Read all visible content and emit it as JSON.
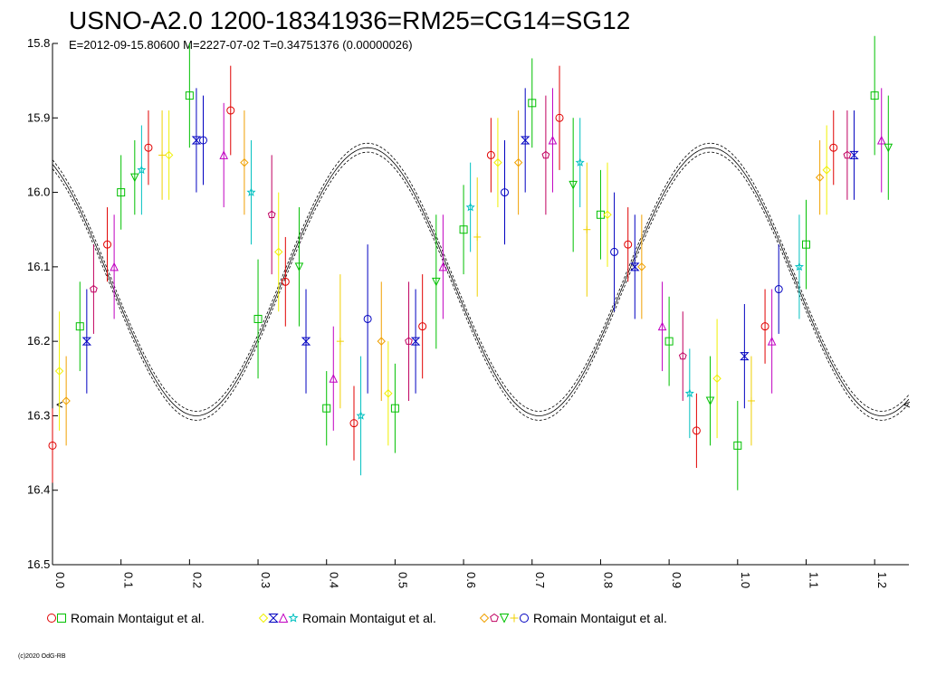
{
  "chart_data": {
    "type": "scatter",
    "title": "USNO-A2.0 1200-18341936=RM25=CG14=SG12",
    "subtitle": "E=2012-09-15.80600    M=2227-07-02    T=0.34751376 (0.00000026)",
    "xlabel": "",
    "ylabel": "",
    "xlim": [
      0.0,
      1.25
    ],
    "ylim": [
      15.8,
      16.5
    ],
    "y_inverted": true,
    "x_ticks": [
      "0.0",
      "0.1",
      "0.2",
      "0.3",
      "0.4",
      "0.5",
      "0.6",
      "0.7",
      "0.8",
      "0.9",
      "1.0",
      "1.1",
      "1.2"
    ],
    "y_ticks": [
      "15.8",
      "15.9",
      "16.0",
      "16.1",
      "16.2",
      "16.3",
      "16.4",
      "16.5"
    ],
    "grid": false,
    "legend_position": "bottom",
    "model_curve": {
      "mean": 16.12,
      "amplitude": 0.18,
      "min_phase": 0.21,
      "period_phase": 0.5
    },
    "series": [
      {
        "name": "Romain Montaigut et al.",
        "colors": [
          "#e00000",
          "#00c000"
        ],
        "markers": [
          "circle",
          "square"
        ],
        "x": [
          0.0,
          0.04,
          0.08,
          0.1,
          0.14,
          0.2,
          0.26,
          0.3,
          0.34,
          0.4,
          0.44,
          0.5,
          0.54,
          0.6,
          0.64,
          0.7,
          0.74,
          0.8,
          0.84,
          0.9,
          0.94,
          1.0,
          1.04,
          1.1,
          1.14,
          1.2
        ],
        "y": [
          16.34,
          16.18,
          16.07,
          16.0,
          15.94,
          15.87,
          15.89,
          16.17,
          16.12,
          16.29,
          16.31,
          16.29,
          16.18,
          16.05,
          15.95,
          15.88,
          15.9,
          16.03,
          16.07,
          16.2,
          16.32,
          16.34,
          16.18,
          16.07,
          15.94,
          15.87
        ],
        "err": [
          0.05,
          0.06,
          0.05,
          0.05,
          0.05,
          0.07,
          0.06,
          0.08,
          0.06,
          0.05,
          0.05,
          0.06,
          0.07,
          0.06,
          0.05,
          0.06,
          0.07,
          0.06,
          0.05,
          0.06,
          0.05,
          0.06,
          0.05,
          0.06,
          0.05,
          0.08
        ]
      },
      {
        "name": "Romain Montaigut et al.",
        "colors": [
          "#f0f000",
          "#0000c0",
          "#c000c0",
          "#00c0c0"
        ],
        "markers": [
          "diamond",
          "bowtie",
          "triangle",
          "star"
        ],
        "x": [
          0.01,
          0.05,
          0.09,
          0.13,
          0.17,
          0.21,
          0.25,
          0.29,
          0.33,
          0.37,
          0.41,
          0.45,
          0.49,
          0.53,
          0.57,
          0.61,
          0.65,
          0.69,
          0.73,
          0.77,
          0.81,
          0.85,
          0.89,
          0.93,
          0.97,
          1.01,
          1.05,
          1.09,
          1.13,
          1.17,
          1.21
        ],
        "y": [
          16.24,
          16.2,
          16.1,
          15.97,
          15.95,
          15.93,
          15.95,
          16.0,
          16.08,
          16.2,
          16.25,
          16.3,
          16.27,
          16.2,
          16.1,
          16.02,
          15.96,
          15.93,
          15.93,
          15.96,
          16.03,
          16.1,
          16.18,
          16.27,
          16.25,
          16.22,
          16.2,
          16.1,
          15.97,
          15.95,
          15.93
        ],
        "err": [
          0.08,
          0.07,
          0.07,
          0.06,
          0.06,
          0.07,
          0.07,
          0.07,
          0.08,
          0.07,
          0.07,
          0.08,
          0.07,
          0.07,
          0.07,
          0.06,
          0.06,
          0.07,
          0.07,
          0.06,
          0.07,
          0.07,
          0.06,
          0.06,
          0.08,
          0.07,
          0.07,
          0.07,
          0.06,
          0.06,
          0.07
        ]
      },
      {
        "name": "Romain Montaigut et al.",
        "colors": [
          "#f0a000",
          "#c00060",
          "#00c000",
          "#f0d000",
          "#0000c0"
        ],
        "markers": [
          "diamond",
          "pentagon",
          "triangle-down",
          "cross",
          "circle"
        ],
        "x": [
          0.02,
          0.06,
          0.12,
          0.16,
          0.22,
          0.28,
          0.32,
          0.36,
          0.42,
          0.46,
          0.48,
          0.52,
          0.56,
          0.62,
          0.66,
          0.68,
          0.72,
          0.76,
          0.78,
          0.82,
          0.86,
          0.92,
          0.96,
          1.02,
          1.06,
          1.12,
          1.16,
          1.22
        ],
        "y": [
          16.28,
          16.13,
          15.98,
          15.95,
          15.93,
          15.96,
          16.03,
          16.1,
          16.2,
          16.17,
          16.2,
          16.2,
          16.12,
          16.06,
          16.0,
          15.96,
          15.95,
          15.99,
          16.05,
          16.08,
          16.1,
          16.22,
          16.28,
          16.28,
          16.13,
          15.98,
          15.95,
          15.94
        ],
        "err": [
          0.06,
          0.06,
          0.05,
          0.06,
          0.06,
          0.07,
          0.08,
          0.08,
          0.09,
          0.1,
          0.08,
          0.08,
          0.09,
          0.08,
          0.07,
          0.07,
          0.08,
          0.09,
          0.09,
          0.08,
          0.07,
          0.06,
          0.06,
          0.06,
          0.06,
          0.05,
          0.06,
          0.07
        ]
      }
    ],
    "legend": [
      {
        "label": "Romain Montaigut et al.",
        "symbols": [
          {
            "shape": "circle",
            "color": "#e00000"
          },
          {
            "shape": "square",
            "color": "#00c000"
          }
        ]
      },
      {
        "label": "Romain Montaigut et al.",
        "symbols": [
          {
            "shape": "diamond",
            "color": "#f0f000"
          },
          {
            "shape": "bowtie",
            "color": "#0000c0"
          },
          {
            "shape": "triangle",
            "color": "#c000c0"
          },
          {
            "shape": "star",
            "color": "#00c0c0"
          }
        ]
      },
      {
        "label": "Romain Montaigut et al.",
        "symbols": [
          {
            "shape": "diamond",
            "color": "#f0a000"
          },
          {
            "shape": "pentagon",
            "color": "#c00060"
          },
          {
            "shape": "triangle-down",
            "color": "#00c000"
          },
          {
            "shape": "cross",
            "color": "#f0d000"
          },
          {
            "shape": "circle",
            "color": "#0000c0"
          }
        ]
      }
    ],
    "side_marker": "<",
    "copyright": "(c)2020 OdG-RB"
  }
}
